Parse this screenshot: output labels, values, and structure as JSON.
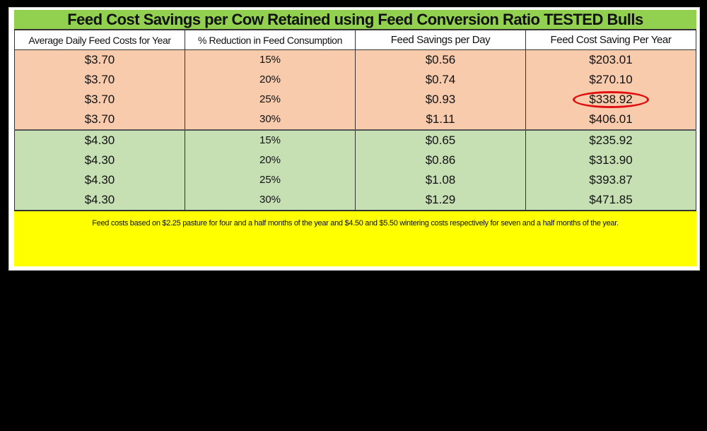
{
  "title": "Feed Cost Savings per Cow Retained using Feed Conversion Ratio TESTED Bulls",
  "headers": [
    "Average Daily Feed Costs for Year",
    "% Reduction in Feed Consumption",
    "Feed Savings per Day",
    "Feed Cost Saving Per Year"
  ],
  "rows": [
    [
      "$3.70",
      "15%",
      "$0.56",
      "$203.01"
    ],
    [
      "$3.70",
      "20%",
      "$0.74",
      "$270.10"
    ],
    [
      "$3.70",
      "25%",
      "$0.93",
      "$338.92"
    ],
    [
      "$3.70",
      "30%",
      "$1.11",
      "$406.01"
    ],
    [
      "$4.30",
      "15%",
      "$0.65",
      "$235.92"
    ],
    [
      "$4.30",
      "20%",
      "$0.86",
      "$313.90"
    ],
    [
      "$4.30",
      "25%",
      "$1.08",
      "$393.87"
    ],
    [
      "$4.30",
      "30%",
      "$1.29",
      "$471.85"
    ]
  ],
  "highlighted_cell": "$338.92",
  "footnote": "Feed costs based on $2.25 pasture for four and a half  months of the year and  $4.50 and $5.50 wintering costs respectively for seven and a half months of the year.",
  "colors": {
    "title_bg": "#92d050",
    "group1_bg": "#f8cbad",
    "group2_bg": "#c6e0b4",
    "footer_bg": "#ffff00",
    "highlight": "#e01010"
  }
}
